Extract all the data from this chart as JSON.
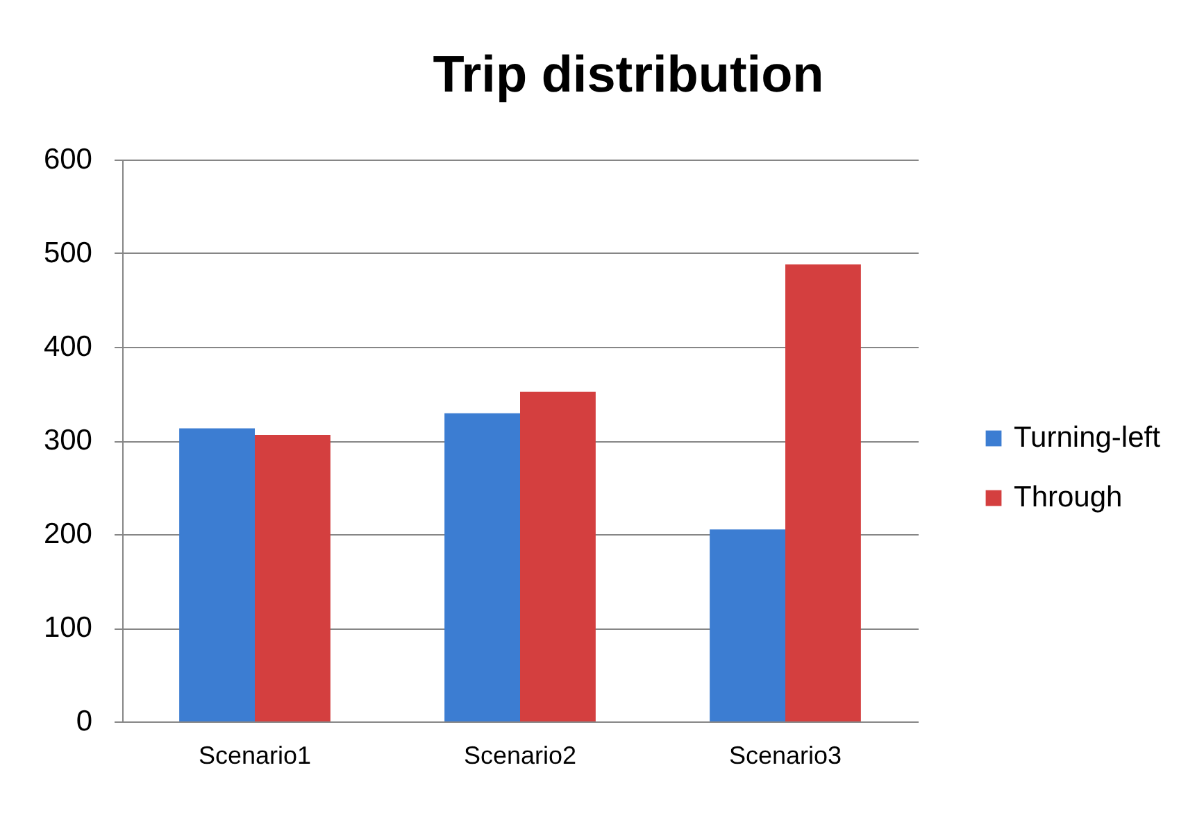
{
  "chart_data": {
    "type": "bar",
    "title": "Trip distribution",
    "categories": [
      "Scenario1",
      "Scenario2",
      "Scenario3"
    ],
    "series": [
      {
        "name": "Turning-left",
        "color": "#3c7dd2",
        "values": [
          313,
          329,
          205
        ]
      },
      {
        "name": "Through",
        "color": "#d43f3f",
        "values": [
          306,
          352,
          488
        ]
      }
    ],
    "ylim": [
      0,
      600
    ],
    "yticks": [
      0,
      100,
      200,
      300,
      400,
      500,
      600
    ],
    "grid": "y",
    "legend": "right"
  }
}
